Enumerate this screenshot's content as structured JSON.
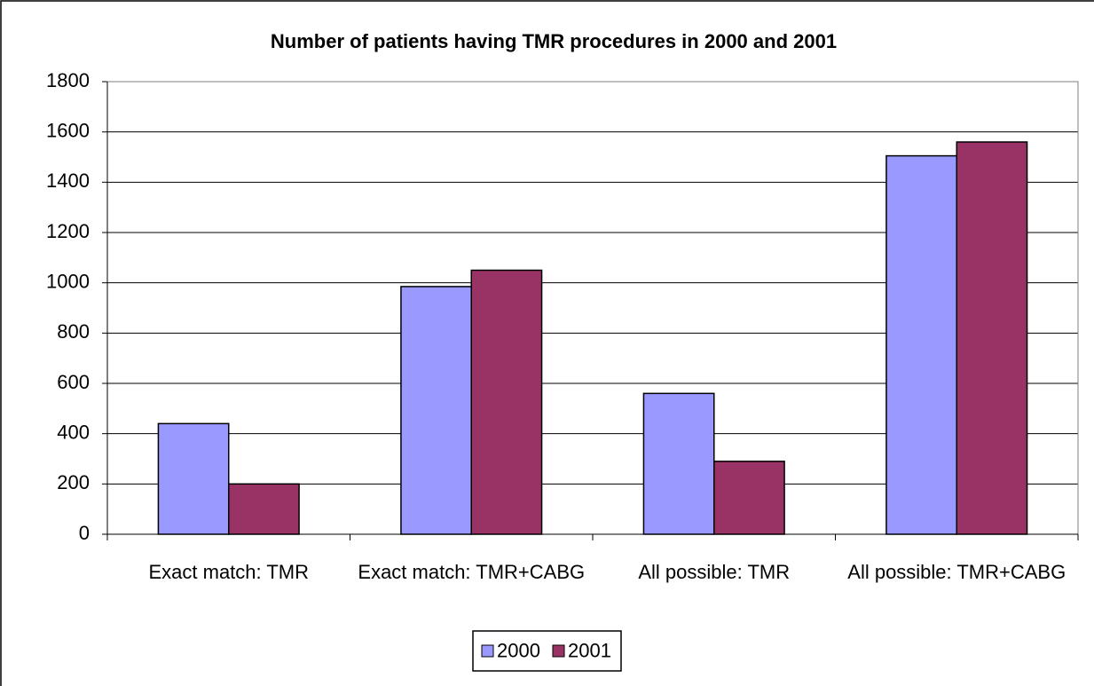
{
  "chart_data": {
    "type": "bar",
    "title": "Number of patients having TMR procedures in 2000 and 2001",
    "categories": [
      "Exact match: TMR",
      "Exact match: TMR+CABG",
      "All possible: TMR",
      "All possible: TMR+CABG"
    ],
    "series": [
      {
        "name": "2000",
        "color": "#9999ff",
        "values": [
          440,
          985,
          560,
          1505
        ]
      },
      {
        "name": "2001",
        "color": "#993366",
        "values": [
          200,
          1050,
          290,
          1560
        ]
      }
    ],
    "ylim": [
      0,
      1800
    ],
    "yticks": [
      0,
      200,
      400,
      600,
      800,
      1000,
      1200,
      1400,
      1600,
      1800
    ],
    "grid": true,
    "legend": "bottom"
  }
}
